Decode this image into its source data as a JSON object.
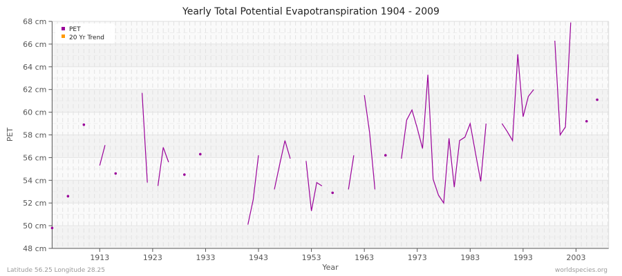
{
  "chart_data": {
    "type": "line",
    "title": "Yearly Total Potential Evapotranspiration 1904 - 2009",
    "xlabel": "Year",
    "ylabel": "PET",
    "xlim": [
      1904,
      2009
    ],
    "ylim": [
      48,
      68
    ],
    "y_unit": "cm",
    "x_ticks": [
      1913,
      1923,
      1933,
      1943,
      1953,
      1963,
      1973,
      1983,
      1993,
      2003
    ],
    "y_ticks": [
      48,
      50,
      52,
      54,
      56,
      58,
      60,
      62,
      64,
      66,
      68
    ],
    "y_tick_labels": [
      "48 cm",
      "50 cm",
      "52 cm",
      "54 cm",
      "56 cm",
      "58 cm",
      "60 cm",
      "62 cm",
      "64 cm",
      "66 cm",
      "68 cm"
    ],
    "grid": true,
    "legend_position": "top-left",
    "legend": [
      {
        "name": "PET",
        "color": "#990099"
      },
      {
        "name": "20 Yr Trend",
        "color": "#ff9900"
      }
    ],
    "series": [
      {
        "name": "PET",
        "color": "#990099",
        "points": [
          [
            1904,
            49.8
          ],
          [
            1907,
            52.6
          ],
          [
            1910,
            58.9
          ],
          [
            1913,
            55.3
          ],
          [
            1914,
            57.1
          ],
          [
            1916,
            54.6
          ],
          [
            1921,
            61.7
          ],
          [
            1922,
            53.8
          ],
          [
            1924,
            53.5
          ],
          [
            1925,
            56.9
          ],
          [
            1926,
            55.6
          ],
          [
            1929,
            54.5
          ],
          [
            1932,
            56.3
          ],
          [
            1941,
            50.1
          ],
          [
            1942,
            52.3
          ],
          [
            1943,
            56.2
          ],
          [
            1946,
            53.2
          ],
          [
            1947,
            55.4
          ],
          [
            1948,
            57.5
          ],
          [
            1949,
            55.9
          ],
          [
            1952,
            55.7
          ],
          [
            1953,
            51.3
          ],
          [
            1954,
            53.8
          ],
          [
            1955,
            53.5
          ],
          [
            1957,
            52.9
          ],
          [
            1960,
            53.2
          ],
          [
            1961,
            56.2
          ],
          [
            1963,
            61.5
          ],
          [
            1964,
            58.2
          ],
          [
            1965,
            53.2
          ],
          [
            1967,
            56.2
          ],
          [
            1970,
            55.9
          ],
          [
            1971,
            59.3
          ],
          [
            1972,
            60.2
          ],
          [
            1973,
            58.6
          ],
          [
            1974,
            56.8
          ],
          [
            1975,
            63.3
          ],
          [
            1976,
            54.1
          ],
          [
            1977,
            52.7
          ],
          [
            1978,
            52.0
          ],
          [
            1979,
            57.7
          ],
          [
            1980,
            53.4
          ],
          [
            1981,
            57.5
          ],
          [
            1982,
            57.8
          ],
          [
            1983,
            59.0
          ],
          [
            1984,
            56.4
          ],
          [
            1985,
            53.9
          ],
          [
            1986,
            59.0
          ],
          [
            1989,
            59.0
          ],
          [
            1990,
            58.3
          ],
          [
            1991,
            57.5
          ],
          [
            1992,
            65.1
          ],
          [
            1993,
            59.6
          ],
          [
            1994,
            61.4
          ],
          [
            1995,
            62.0
          ],
          [
            1999,
            66.3
          ],
          [
            2000,
            58.0
          ],
          [
            2001,
            58.7
          ],
          [
            2002,
            67.9
          ],
          [
            2005,
            59.2
          ],
          [
            2007,
            61.1
          ]
        ]
      },
      {
        "name": "20 Yr Trend",
        "color": "#ff9900",
        "points": []
      }
    ]
  },
  "footer": {
    "location": "Latitude 56.25 Longitude 28.25",
    "source": "worldspecies.org"
  }
}
